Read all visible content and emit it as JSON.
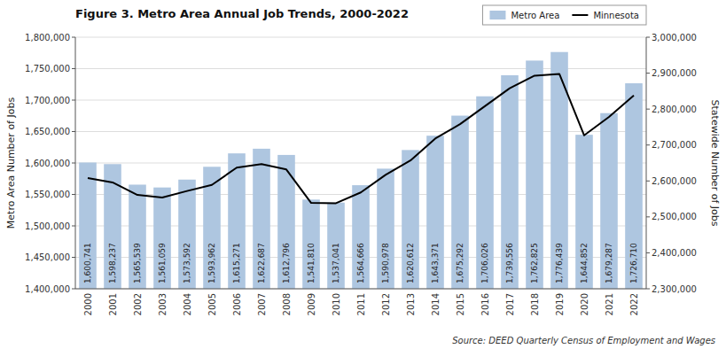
{
  "chart_data": {
    "type": "bar",
    "title": "Figure 3. Metro Area Annual Job Trends, 2000-2022",
    "source": "Source: DEED Quarterly Census of Employment and Wages",
    "ylabel": "Metro Area Number of Jobs",
    "y2label": "Statewide Number of Jobs",
    "categories": [
      "2000",
      "2001",
      "2002",
      "2003",
      "2004",
      "2005",
      "2006",
      "2007",
      "2008",
      "2009",
      "2010",
      "2011",
      "2012",
      "2013",
      "2014",
      "2015",
      "2016",
      "2017",
      "2018",
      "2019",
      "2020",
      "2021",
      "2022"
    ],
    "series": [
      {
        "name": "Metro Area",
        "type": "bar",
        "color": "#aec6e0",
        "data_labels": true,
        "values": [
          1600741,
          1598237,
          1565539,
          1561059,
          1573592,
          1593962,
          1615271,
          1622687,
          1612796,
          1541810,
          1537041,
          1564666,
          1590978,
          1620612,
          1643371,
          1675292,
          1706026,
          1739556,
          1762825,
          1776439,
          1644852,
          1679287,
          1726710
        ],
        "value_labels": [
          "1,600,741",
          "1,598,237",
          "1,565,539",
          "1,561,059",
          "1,573,592",
          "1,593,962",
          "1,615,271",
          "1,622,687",
          "1,612,796",
          "1,541,810",
          "1,537,041",
          "1,564,666",
          "1,590,978",
          "1,620,612",
          "1,643,371",
          "1,675,292",
          "1,706,026",
          "1,739,556",
          "1,762,825",
          "1,776,439",
          "1,644,852",
          "1,679,287",
          "1,726,710"
        ]
      },
      {
        "name": "Minnesota",
        "type": "line",
        "axis": "y2",
        "color": "#000000",
        "values": [
          2608000,
          2596000,
          2561000,
          2554000,
          2572000,
          2589000,
          2637000,
          2647000,
          2632000,
          2539000,
          2538000,
          2568000,
          2617000,
          2657000,
          2718000,
          2758000,
          2808000,
          2858000,
          2893000,
          2898000,
          2727000,
          2778000,
          2838000
        ]
      }
    ],
    "ylim": [
      1400000,
      1800000
    ],
    "yticks": [
      {
        "value": 1400000,
        "label": "1,400,000"
      },
      {
        "value": 1450000,
        "label": "1,450,000"
      },
      {
        "value": 1500000,
        "label": "1,500,000"
      },
      {
        "value": 1550000,
        "label": "1,550,000"
      },
      {
        "value": 1600000,
        "label": "1,600,000"
      },
      {
        "value": 1650000,
        "label": "1,650,000"
      },
      {
        "value": 1700000,
        "label": "1,700,000"
      },
      {
        "value": 1750000,
        "label": "1,750,000"
      },
      {
        "value": 1800000,
        "label": "1,800,000"
      }
    ],
    "y2lim": [
      2300000,
      3000000
    ],
    "y2ticks": [
      {
        "value": 2300000,
        "label": "2,300,000"
      },
      {
        "value": 2400000,
        "label": "2,400,000"
      },
      {
        "value": 2500000,
        "label": "2,500,000"
      },
      {
        "value": 2600000,
        "label": "2,600,000"
      },
      {
        "value": 2700000,
        "label": "2,700,000"
      },
      {
        "value": 2800000,
        "label": "2,800,000"
      },
      {
        "value": 2900000,
        "label": "2,900,000"
      },
      {
        "value": 3000000,
        "label": "3,000,000"
      }
    ],
    "grid": true,
    "legend": "top-right"
  }
}
